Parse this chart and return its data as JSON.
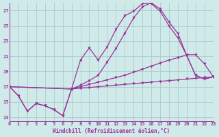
{
  "bg_color": "#d0eaea",
  "grid_color": "#aacccc",
  "line_color": "#993399",
  "xlim": [
    0,
    23
  ],
  "ylim": [
    12.5,
    28.0
  ],
  "yticks": [
    13,
    15,
    17,
    19,
    21,
    23,
    25,
    27
  ],
  "xticks": [
    0,
    1,
    2,
    3,
    4,
    5,
    6,
    7,
    8,
    9,
    10,
    11,
    12,
    13,
    14,
    15,
    16,
    17,
    18,
    19,
    20,
    21,
    22,
    23
  ],
  "xlabel": "Windchill (Refroidissement éolien,°C)",
  "curve1_x": [
    0,
    1,
    2,
    3,
    4,
    5,
    6,
    7,
    8,
    9,
    10,
    11,
    12,
    13,
    14,
    15,
    16,
    17,
    18,
    19,
    20,
    21,
    22,
    23
  ],
  "curve1_y": [
    17.0,
    15.8,
    13.8,
    14.8,
    14.5,
    14.0,
    13.2,
    16.7,
    20.5,
    22.1,
    20.5,
    22.2,
    24.5,
    26.3,
    26.9,
    27.9,
    27.9,
    26.9,
    25.0,
    23.4,
    21.1,
    18.5,
    18.0,
    18.3
  ],
  "curve2_x": [
    0,
    1,
    2,
    3,
    4,
    5,
    6,
    7,
    8,
    9,
    10,
    11,
    12,
    13,
    14,
    15,
    16,
    17,
    18,
    19,
    20,
    21,
    22,
    23
  ],
  "curve2_y": [
    17.0,
    15.8,
    13.8,
    14.8,
    14.5,
    14.0,
    13.2,
    16.7,
    17.2,
    17.8,
    18.5,
    20.2,
    22.0,
    24.0,
    26.0,
    27.5,
    28.0,
    27.2,
    25.5,
    24.0,
    21.1,
    18.5,
    18.0,
    18.3
  ],
  "curve3_x": [
    0,
    7,
    8,
    9,
    10,
    11,
    12,
    13,
    14,
    15,
    16,
    17,
    18,
    19,
    20,
    21,
    22,
    23
  ],
  "curve3_y": [
    17.0,
    16.7,
    17.0,
    17.3,
    17.6,
    17.9,
    18.2,
    18.5,
    18.9,
    19.3,
    19.7,
    20.1,
    20.5,
    20.8,
    21.2,
    21.2,
    20.0,
    18.3
  ],
  "curve4_x": [
    0,
    7,
    8,
    9,
    10,
    11,
    12,
    13,
    14,
    15,
    16,
    17,
    18,
    19,
    20,
    21,
    22,
    23
  ],
  "curve4_y": [
    17.0,
    16.7,
    16.8,
    16.9,
    17.0,
    17.1,
    17.2,
    17.3,
    17.4,
    17.5,
    17.6,
    17.7,
    17.8,
    17.9,
    18.0,
    18.1,
    18.2,
    18.3
  ]
}
